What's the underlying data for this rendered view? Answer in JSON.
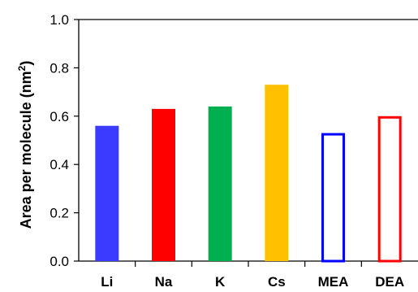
{
  "chart_data": {
    "type": "bar",
    "categories": [
      "Li",
      "Na",
      "K",
      "Cs",
      "MEA",
      "DEA"
    ],
    "values": [
      0.56,
      0.63,
      0.64,
      0.73,
      0.53,
      0.6
    ],
    "colors": [
      "#3b3bff",
      "#ff0000",
      "#00b050",
      "#ffc000",
      "#0000ff",
      "#ff0000"
    ],
    "fill_styles": [
      "solid",
      "solid",
      "solid",
      "solid",
      "outline",
      "outline"
    ],
    "ylabel": "Area per molecule  (nm",
    "ylabel_sup": "2",
    "ylabel_end": ")",
    "ylim": [
      0,
      1.0
    ],
    "yticks": [
      "0.0",
      "0.2",
      "0.4",
      "0.6",
      "0.8",
      "1.0"
    ],
    "grid": false
  }
}
